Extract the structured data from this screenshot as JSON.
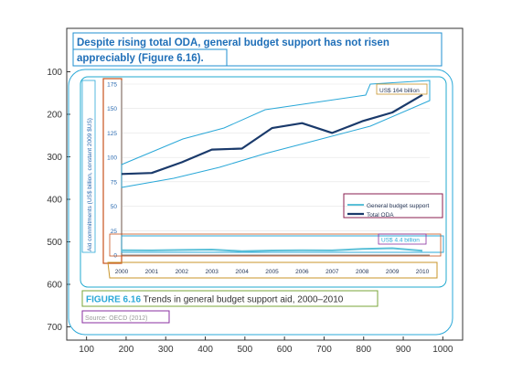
{
  "frame": {
    "x_ticks": [
      100,
      200,
      300,
      400,
      500,
      600,
      700,
      800,
      900,
      1000
    ],
    "y_ticks": [
      100,
      200,
      300,
      400,
      500,
      600,
      700
    ]
  },
  "doc": {
    "title": "Despite rising total ODA, general budget support has not risen appreciably (Figure 6.16).",
    "title_line1": "Despite rising total ODA, general budget support has not risen",
    "title_line2": "appreciably (Figure 6.16).",
    "caption_label": "FIGURE 6.16",
    "caption_text": " Trends in general budget support aid, 2000–2010",
    "source": "Source: OECD (2012)"
  },
  "chart_data": {
    "type": "line",
    "x": [
      "2000",
      "2001",
      "2002",
      "2003",
      "2004",
      "2005",
      "2006",
      "2007",
      "2008",
      "2009",
      "2010"
    ],
    "ylabel": "Aid commitments (US$ billion, constant 2009 $US)",
    "y_ticks": [
      0,
      25,
      50,
      75,
      100,
      125,
      150,
      175
    ],
    "ylim": [
      0,
      180
    ],
    "series": [
      {
        "name": "General budget support",
        "color": "#5bc0d8",
        "width": 2,
        "values": [
          5.0,
          4.8,
          5.2,
          5.6,
          4.0,
          4.7,
          5.0,
          4.8,
          6.3,
          7.0,
          4.4
        ]
      },
      {
        "name": "Total ODA",
        "color": "#1a3a6b",
        "width": 2.2,
        "values": [
          83,
          84,
          95,
          108,
          109,
          130,
          135,
          125,
          137,
          146,
          164
        ]
      }
    ],
    "annotations": [
      {
        "text": "US$ 164 billion",
        "x": "2010",
        "y": 164
      },
      {
        "text": "US$ 4.4 billion",
        "x": "2010",
        "y": 4.4
      }
    ],
    "legend": [
      "General budget support",
      "Total ODA"
    ],
    "legend_position": "right, lower middle",
    "grid": true
  },
  "overlays": {
    "box_colors": [
      "#1f8fd0",
      "#22aacf",
      "#c9531d",
      "#8a1d4f",
      "#2c7fcf",
      "#c8952a",
      "#7aa53a",
      "#8a2fa0",
      "#2aa8d8"
    ]
  }
}
